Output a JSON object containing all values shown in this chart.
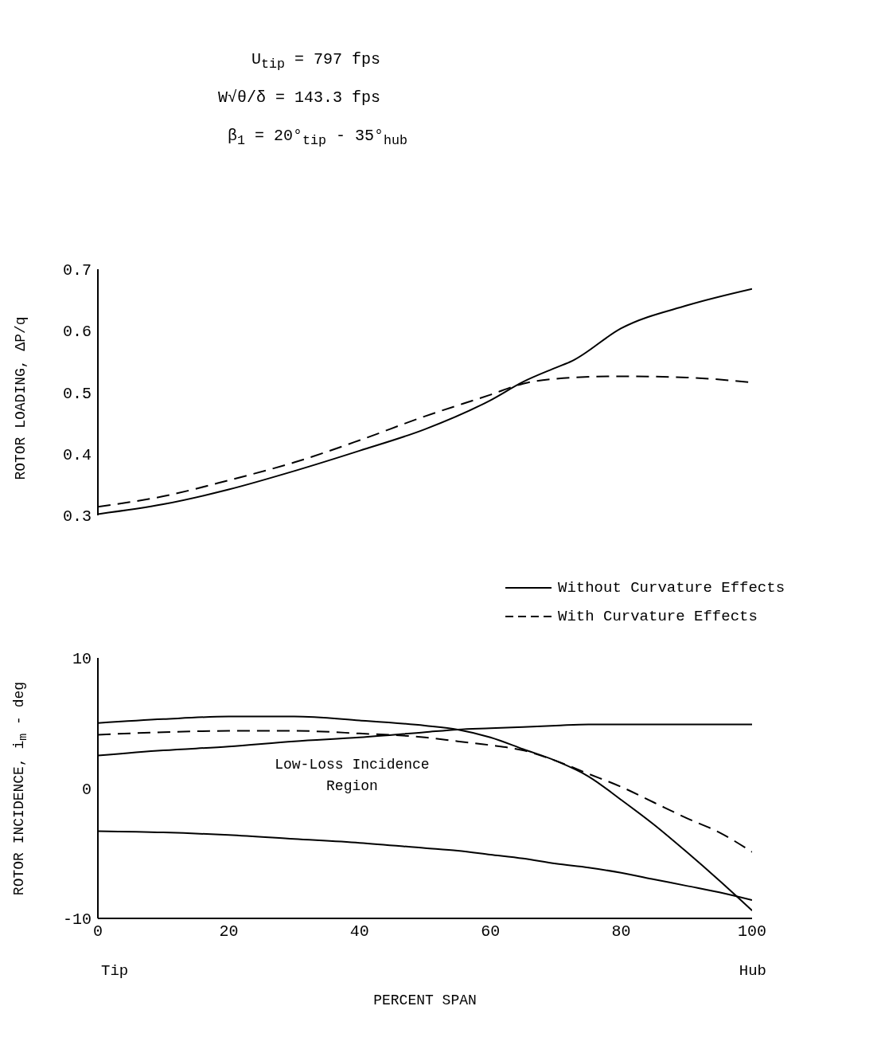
{
  "chart_data": [
    {
      "type": "line",
      "ylabel": "ROTOR LOADING, ΔP/q",
      "annotations": [
        "U$_{tip}$ = 797 fps",
        "W√θ/δ = 143.3 fps",
        "β$_{1}$ = 20°$_{tip}$ - 35°$_{hub}$"
      ],
      "x": [
        0,
        10,
        20,
        30,
        40,
        50,
        60,
        65,
        70,
        72.5,
        80,
        90,
        100
      ],
      "xlim": [
        0,
        100
      ],
      "ylim": [
        0.3,
        0.7
      ],
      "yticks": [
        0.3,
        0.4,
        0.5,
        0.6,
        0.7
      ],
      "tick_labels": "y",
      "marker": "none",
      "legend": "bottom right",
      "series": [
        {
          "name": "Without Curvature Effects",
          "color": "#000000",
          "line_style": "solid",
          "values": [
            0.302,
            0.318,
            0.342,
            0.372,
            0.405,
            0.44,
            0.487,
            0.517,
            0.54,
            0.551,
            0.604,
            0.641,
            0.668
          ]
        },
        {
          "name": "With Curvature Effects",
          "color": "#000000",
          "line_style": "dashed",
          "values": [
            0.314,
            0.331,
            0.357,
            0.386,
            0.422,
            0.461,
            0.496,
            0.514,
            0.522,
            0.524,
            0.526,
            0.524,
            0.516
          ]
        }
      ]
    },
    {
      "type": "line",
      "xlabel": "PERCENT SPAN",
      "ylabel": "ROTOR INCIDENCE, i$_{m}$ - deg",
      "annotations": [
        "Tip",
        "Hub",
        "Low-Loss Incidence Region"
      ],
      "x": [
        0,
        10,
        20,
        30,
        40,
        50,
        55,
        60,
        65,
        70,
        75,
        80,
        85,
        90,
        95,
        100
      ],
      "xlim": [
        0,
        100
      ],
      "xticks": [
        0,
        20,
        40,
        60,
        80,
        100
      ],
      "ylim": [
        -10,
        10
      ],
      "yticks": [
        -10,
        0,
        10
      ],
      "marker": "none",
      "series": [
        {
          "color": "#000000",
          "line_style": "solid",
          "values": [
            2.5,
            2.9,
            3.2,
            3.6,
            3.9,
            4.3,
            4.5,
            4.6,
            4.7,
            4.8,
            4.9,
            4.9,
            4.9,
            4.9,
            4.9,
            4.9
          ]
        },
        {
          "color": "#000000",
          "line_style": "solid",
          "values": [
            -3.3,
            -3.4,
            -3.6,
            -3.9,
            -4.2,
            -4.6,
            -4.8,
            -5.1,
            -5.4,
            -5.8,
            -6.1,
            -6.5,
            -7.0,
            -7.5,
            -8.0,
            -8.6
          ]
        },
        {
          "color": "#000000",
          "line_style": "solid",
          "values": [
            5.0,
            5.3,
            5.5,
            5.5,
            5.2,
            4.8,
            4.5,
            3.9,
            3.0,
            2.1,
            0.9,
            -0.9,
            -2.8,
            -4.9,
            -7.1,
            -9.4
          ]
        },
        {
          "color": "#000000",
          "line_style": "dashed",
          "values": [
            4.1,
            4.3,
            4.4,
            4.4,
            4.2,
            3.9,
            3.6,
            3.3,
            2.9,
            2.1,
            1.1,
            0.1,
            -1.1,
            -2.3,
            -3.4,
            -4.9
          ]
        }
      ]
    }
  ]
}
